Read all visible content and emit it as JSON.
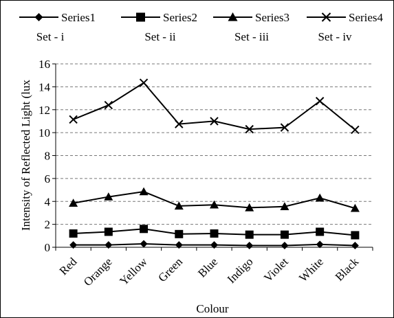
{
  "chart_data": {
    "type": "line",
    "categories": [
      "Red",
      "Orange",
      "Yellow",
      "Green",
      "Blue",
      "Indigo",
      "Violet",
      "White",
      "Black"
    ],
    "series": [
      {
        "name": "Series1",
        "marker": "diamond",
        "values": [
          0.2,
          0.2,
          0.3,
          0.2,
          0.2,
          0.15,
          0.15,
          0.25,
          0.15
        ]
      },
      {
        "name": "Series2",
        "marker": "square",
        "values": [
          1.2,
          1.35,
          1.6,
          1.15,
          1.2,
          1.1,
          1.1,
          1.35,
          1.05
        ]
      },
      {
        "name": "Series3",
        "marker": "triangle",
        "values": [
          3.85,
          4.4,
          4.85,
          3.6,
          3.7,
          3.45,
          3.55,
          4.3,
          3.4
        ]
      },
      {
        "name": "Series4",
        "marker": "x",
        "values": [
          11.15,
          12.4,
          14.35,
          10.75,
          11.0,
          10.3,
          10.45,
          12.75,
          10.25
        ]
      }
    ],
    "set_labels": [
      "Set - i",
      "Set - ii",
      "Set - iii",
      "Set - iv"
    ],
    "xlabel": "Colour",
    "ylabel": "Intensity of Reflected Light (lux",
    "ylim": [
      0,
      16
    ],
    "yticks": [
      0,
      2,
      4,
      6,
      8,
      10,
      12,
      14,
      16
    ],
    "grid": "horizontal dashed",
    "legend_position": "top"
  }
}
